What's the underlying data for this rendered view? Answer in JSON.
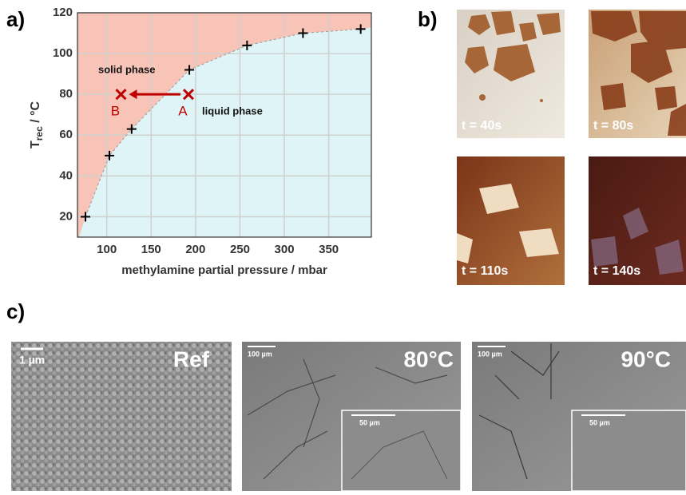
{
  "chart_data": {
    "type": "scatter",
    "xlabel": "methylamine partial pressure / mbar",
    "ylabel": {
      "main": "T",
      "sub": "rec",
      "unit": " / °C"
    },
    "xlim": [
      67,
      398
    ],
    "xticks": [
      100,
      150,
      200,
      250,
      300,
      350
    ],
    "ylim": [
      10,
      120
    ],
    "yticks": [
      20,
      40,
      60,
      80,
      100,
      120
    ],
    "grid": true,
    "points": {
      "x": [
        76,
        103,
        128,
        193,
        258,
        321,
        386
      ],
      "y": [
        20,
        50,
        63,
        92,
        104,
        110,
        112
      ],
      "color": "#000000"
    },
    "markers": {
      "x": [
        192,
        116
      ],
      "y": [
        80,
        80
      ],
      "labels": [
        "A",
        "B"
      ],
      "color": "#c00000"
    },
    "regions": {
      "solid": {
        "label": "solid phase",
        "color": "#f8c4b8"
      },
      "liquid": {
        "label": "liquid phase",
        "color": "#def4f6"
      }
    }
  },
  "panels": {
    "a": "a)",
    "b": "b)",
    "c": "c)"
  },
  "photos": [
    "t = 40s",
    "t = 80s",
    "t = 110s",
    "t = 140s"
  ],
  "sem": [
    {
      "scale": "1 µm",
      "label": "Ref"
    },
    {
      "scale": "100 µm",
      "label": "80°C",
      "inset_scale": "50 µm"
    },
    {
      "scale": "100 µm",
      "label": "90°C",
      "inset_scale": "50 µm"
    }
  ]
}
